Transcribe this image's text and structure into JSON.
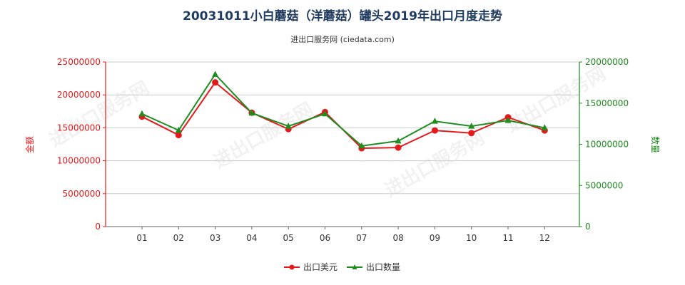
{
  "header": {
    "title": "20031011小白蘑菇（洋蘑菇）罐头2019年出口月度走势",
    "subtitle": "进出口服务网 (ciedata.com)"
  },
  "watermark": {
    "text": "进出口服务网"
  },
  "chart_data": {
    "type": "line",
    "categories": [
      "01",
      "02",
      "03",
      "04",
      "05",
      "06",
      "07",
      "08",
      "09",
      "10",
      "11",
      "12"
    ],
    "series": [
      {
        "name": "出口美元",
        "axis": "left",
        "color": "#e31a1c",
        "values": [
          16700000,
          13900000,
          21900000,
          17300000,
          14800000,
          17400000,
          11900000,
          12000000,
          14600000,
          14200000,
          16600000,
          14600000
        ]
      },
      {
        "name": "出口数量",
        "axis": "right",
        "color": "#1e8c1e",
        "values": [
          13700000,
          11700000,
          18500000,
          13800000,
          12200000,
          13700000,
          9800000,
          10400000,
          12800000,
          12200000,
          12900000,
          12000000
        ]
      }
    ],
    "y_left": {
      "label": "金额",
      "color": "#e31a1c",
      "ylim": [
        0,
        25000000
      ],
      "ticks": [
        "0",
        "5000000",
        "10000000",
        "15000000",
        "20000000",
        "25000000"
      ]
    },
    "y_right": {
      "label": "数量",
      "color": "#1e8c1e",
      "ylim": [
        0,
        20000000
      ],
      "ticks": [
        "0",
        "5000000",
        "10000000",
        "15000000",
        "20000000"
      ]
    },
    "grid": true,
    "legend_position": "bottom-center"
  }
}
